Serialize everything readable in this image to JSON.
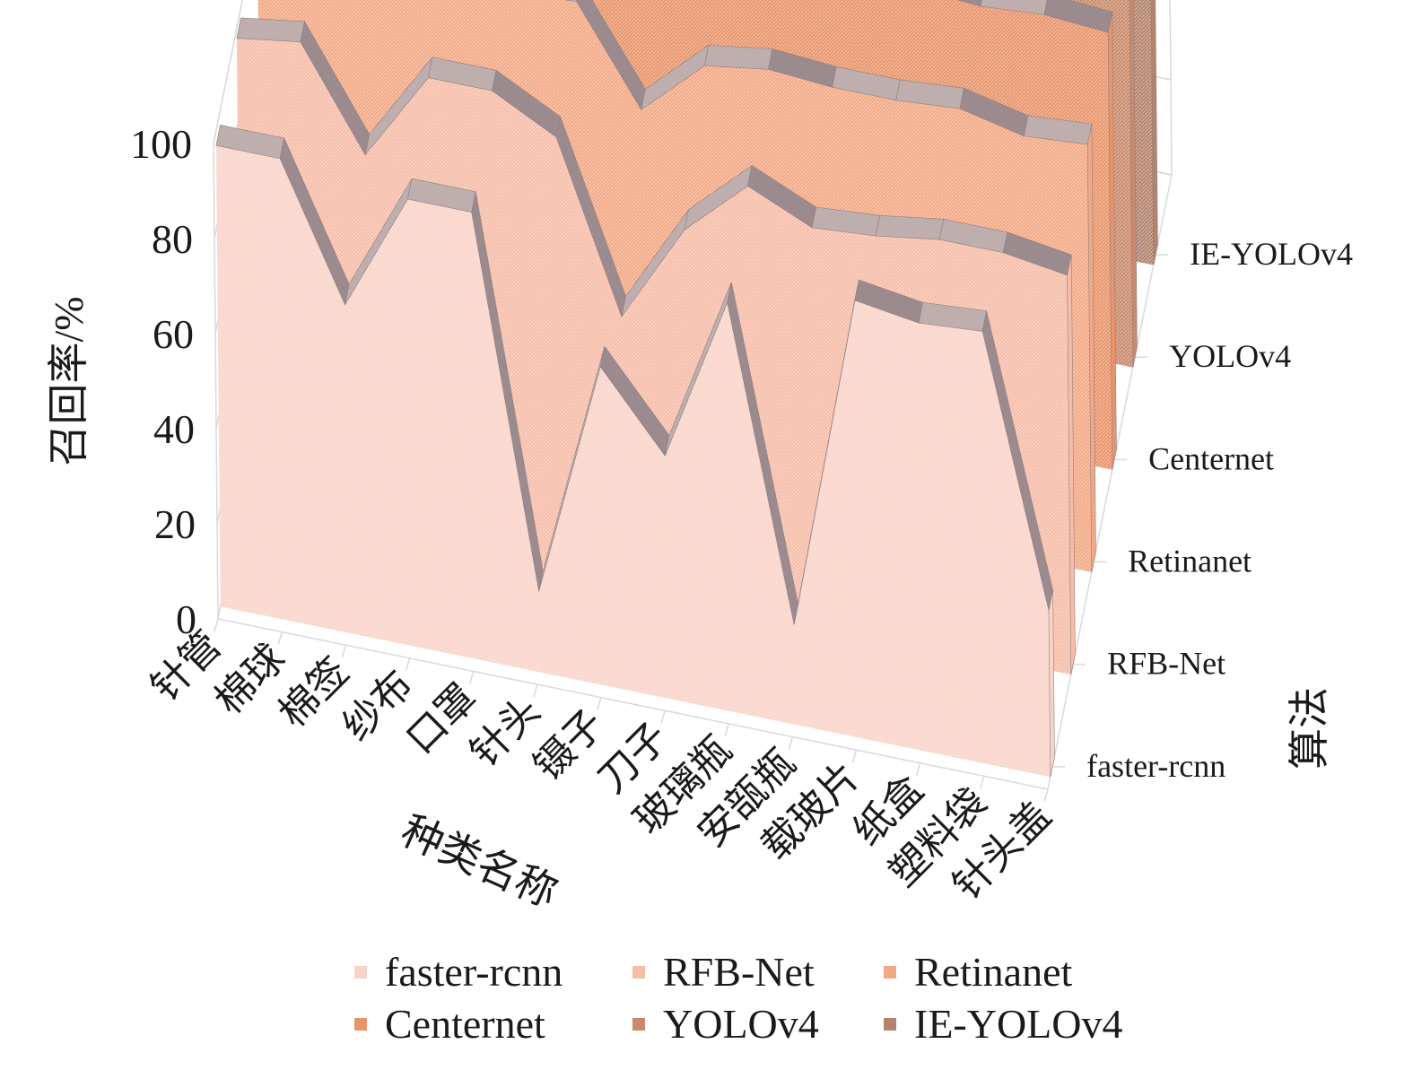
{
  "chart_data": {
    "type": "area",
    "subtype": "3d-ribbon",
    "xlabel": "种类名称",
    "ylabel": "召回率/%",
    "zlabel": "算法",
    "ylim": [
      0,
      100
    ],
    "y_ticks": [
      0,
      20,
      40,
      60,
      80,
      100
    ],
    "grid": true,
    "legend_position": "bottom",
    "categories": [
      "针管",
      "棉球",
      "棉签",
      "纱布",
      "口罩",
      "针头",
      "镊子",
      "刀子",
      "玻璃瓶",
      "安瓿瓶",
      "载玻片",
      "纸盒",
      "塑料袋",
      "针头盖"
    ],
    "series": [
      {
        "name": "faster-rcnn",
        "color": "#f9d3c8",
        "values": [
          97,
          97,
          69,
          94,
          94,
          17,
          67,
          51,
          86,
          21,
          92,
          90,
          91,
          35
        ]
      },
      {
        "name": "RFB-Net",
        "color": "#f6bca8",
        "values": [
          98,
          100,
          79,
          98,
          98,
          91,
          56,
          77,
          89,
          83,
          84,
          86,
          86,
          84
        ]
      },
      {
        "name": "Retinanet",
        "color": "#f2a884",
        "values": [
          98,
          99,
          93,
          96,
          97,
          98,
          78,
          90,
          92,
          91,
          91,
          92,
          89,
          90
        ]
      },
      {
        "name": "Centernet",
        "color": "#e8946a",
        "values": [
          99,
          99,
          97,
          99,
          96,
          98,
          93,
          94,
          94,
          92,
          93,
          92,
          93,
          92
        ]
      },
      {
        "name": "YOLOv4",
        "color": "#c98a6c",
        "values": [
          99,
          99,
          94,
          97,
          96,
          97,
          95,
          95,
          94,
          94,
          94,
          94,
          92,
          92
        ]
      },
      {
        "name": "IE-YOLOv4",
        "color": "#b3836d",
        "values": [
          99,
          100,
          96,
          98,
          98,
          98,
          97,
          96,
          96,
          95,
          95,
          95,
          94,
          94
        ]
      }
    ]
  }
}
